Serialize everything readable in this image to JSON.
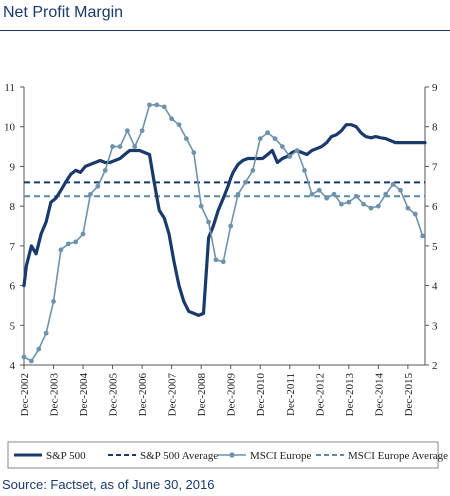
{
  "title": "Net Profit Margin",
  "source": "Source: Factset, as of June 30, 2016",
  "chart_data": {
    "type": "line",
    "title": "Net Profit Margin",
    "x_tick_labels": [
      "Dec-2002",
      "Dec-2003",
      "Dec-2004",
      "Dec-2005",
      "Dec-2006",
      "Dec-2007",
      "Dec-2008",
      "Dec-2009",
      "Dec-2010",
      "Dec-2011",
      "Dec-2012",
      "Dec-2013",
      "Dec-2014",
      "Dec-2015"
    ],
    "xlim": [
      2002.92,
      2016.5
    ],
    "ylim_left": [
      4,
      11
    ],
    "ylim_right": [
      2,
      9
    ],
    "yticks_left": [
      4,
      5,
      6,
      7,
      8,
      9,
      10,
      11
    ],
    "yticks_right": [
      2,
      3,
      4,
      5,
      6,
      7,
      8,
      9
    ],
    "grid": false,
    "legend_position": "bottom",
    "series": [
      {
        "name": "S&P 500",
        "axis": "left",
        "color": "#1a3a6b",
        "style": "solid",
        "x": [
          2002.92,
          2003.0,
          2003.17,
          2003.33,
          2003.5,
          2003.67,
          2003.83,
          2004.0,
          2004.17,
          2004.33,
          2004.5,
          2004.67,
          2004.83,
          2005.0,
          2005.17,
          2005.33,
          2005.5,
          2005.67,
          2005.83,
          2006.0,
          2006.17,
          2006.33,
          2006.5,
          2006.67,
          2006.83,
          2007.0,
          2007.17,
          2007.33,
          2007.5,
          2007.67,
          2007.83,
          2008.0,
          2008.17,
          2008.33,
          2008.5,
          2008.67,
          2008.83,
          2009.0,
          2009.17,
          2009.33,
          2009.5,
          2009.67,
          2009.83,
          2009.92,
          2010.0,
          2010.17,
          2010.33,
          2010.5,
          2010.67,
          2010.83,
          2011.0,
          2011.17,
          2011.33,
          2011.5,
          2011.67,
          2011.83,
          2012.0,
          2012.17,
          2012.33,
          2012.5,
          2012.67,
          2012.83,
          2013.0,
          2013.17,
          2013.33,
          2013.5,
          2013.67,
          2013.83,
          2014.0,
          2014.17,
          2014.33,
          2014.5,
          2014.67,
          2014.83,
          2015.0,
          2015.17,
          2015.33,
          2015.5,
          2015.67,
          2015.83,
          2016.0,
          2016.17,
          2016.33,
          2016.5
        ],
        "y": [
          6.0,
          6.5,
          7.0,
          6.8,
          7.3,
          7.6,
          8.1,
          8.2,
          8.4,
          8.6,
          8.8,
          8.9,
          8.85,
          9.0,
          9.05,
          9.1,
          9.15,
          9.1,
          9.1,
          9.15,
          9.2,
          9.3,
          9.4,
          9.4,
          9.4,
          9.35,
          9.3,
          8.6,
          7.9,
          7.7,
          7.3,
          6.6,
          6.0,
          5.6,
          5.35,
          5.3,
          5.25,
          5.3,
          7.2,
          7.5,
          7.9,
          8.2,
          8.5,
          8.7,
          8.85,
          9.05,
          9.15,
          9.2,
          9.2,
          9.2,
          9.2,
          9.3,
          9.4,
          9.1,
          9.2,
          9.25,
          9.35,
          9.4,
          9.35,
          9.3,
          9.4,
          9.45,
          9.5,
          9.6,
          9.75,
          9.8,
          9.9,
          10.05,
          10.05,
          10.0,
          9.85,
          9.75,
          9.72,
          9.75,
          9.72,
          9.7,
          9.65,
          9.6,
          9.6,
          9.6,
          9.6,
          9.6,
          9.6,
          9.6
        ]
      },
      {
        "name": "S&P 500 Average",
        "axis": "left",
        "color": "#1a3a6b",
        "style": "dashed",
        "value": 8.6
      },
      {
        "name": "MSCI Europe",
        "axis": "right",
        "color": "#6f93ad",
        "style": "solid-markers",
        "x": [
          2002.92,
          2003.17,
          2003.42,
          2003.67,
          2003.92,
          2004.17,
          2004.42,
          2004.67,
          2004.92,
          2005.17,
          2005.42,
          2005.67,
          2005.92,
          2006.17,
          2006.42,
          2006.67,
          2006.92,
          2007.17,
          2007.42,
          2007.67,
          2007.92,
          2008.17,
          2008.42,
          2008.67,
          2008.92,
          2009.17,
          2009.42,
          2009.67,
          2009.92,
          2010.17,
          2010.42,
          2010.67,
          2010.92,
          2011.17,
          2011.42,
          2011.67,
          2011.92,
          2012.17,
          2012.42,
          2012.67,
          2012.92,
          2013.17,
          2013.42,
          2013.67,
          2013.92,
          2014.17,
          2014.42,
          2014.67,
          2014.92,
          2015.17,
          2015.42,
          2015.67,
          2015.92,
          2016.17,
          2016.42
        ],
        "y": [
          2.2,
          2.1,
          2.4,
          2.8,
          3.6,
          4.9,
          5.05,
          5.1,
          5.3,
          6.3,
          6.5,
          6.9,
          7.5,
          7.5,
          7.9,
          7.5,
          7.9,
          8.55,
          8.55,
          8.5,
          8.2,
          8.05,
          7.7,
          7.35,
          6.0,
          5.6,
          4.65,
          4.6,
          5.5,
          6.3,
          6.6,
          6.9,
          7.7,
          7.85,
          7.7,
          7.5,
          7.25,
          7.4,
          6.9,
          6.3,
          6.4,
          6.2,
          6.3,
          6.05,
          6.1,
          6.25,
          6.05,
          5.95,
          6.0,
          6.3,
          6.55,
          6.4,
          5.95,
          5.8,
          5.25
        ]
      },
      {
        "name": "MSCI Europe Average",
        "axis": "right",
        "color": "#5a8aa8",
        "style": "dashed",
        "value": 6.25
      }
    ]
  }
}
